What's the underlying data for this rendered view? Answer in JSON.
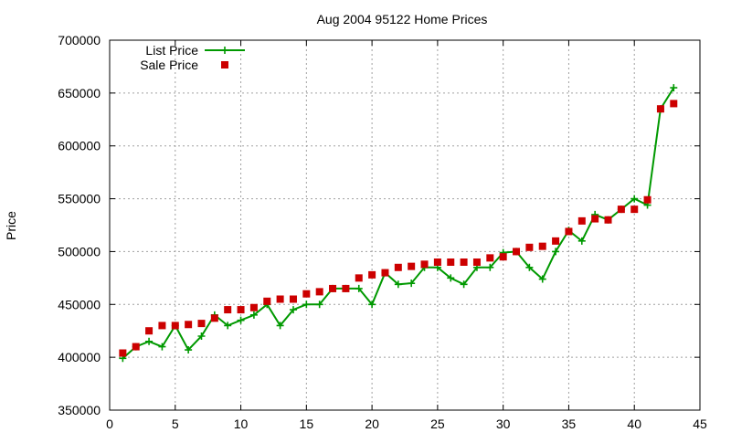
{
  "chart_data": {
    "type": "line",
    "title": "Aug 2004 95122 Home Prices",
    "xlabel": "",
    "ylabel": "Price",
    "xlim": [
      0,
      45
    ],
    "ylim": [
      350000,
      700000
    ],
    "xticks": [
      0,
      5,
      10,
      15,
      20,
      25,
      30,
      35,
      40,
      45
    ],
    "yticks": [
      350000,
      400000,
      450000,
      500000,
      550000,
      600000,
      650000,
      700000
    ],
    "grid": true,
    "legend_position": "top-left",
    "series": [
      {
        "name": "List Price",
        "style": "line-plus",
        "color": "#009900",
        "x": [
          1,
          2,
          3,
          4,
          5,
          6,
          7,
          8,
          9,
          10,
          11,
          12,
          13,
          14,
          15,
          16,
          17,
          18,
          19,
          20,
          21,
          22,
          23,
          24,
          25,
          26,
          27,
          28,
          29,
          30,
          31,
          32,
          33,
          34,
          35,
          36,
          37,
          38,
          39,
          40,
          41,
          42,
          43
        ],
        "y": [
          399000,
          410000,
          415000,
          410000,
          430000,
          407000,
          420000,
          440000,
          430000,
          435000,
          440000,
          450000,
          430000,
          445000,
          450000,
          450000,
          465000,
          465000,
          465000,
          450000,
          480000,
          469000,
          470000,
          485000,
          485000,
          475000,
          469000,
          485000,
          485000,
          499000,
          500000,
          485000,
          474000,
          500000,
          520000,
          510000,
          535000,
          530000,
          540000,
          550000,
          544000,
          635000,
          655000
        ]
      },
      {
        "name": "Sale Price",
        "style": "points-square",
        "color": "#cc0000",
        "x": [
          1,
          2,
          3,
          4,
          5,
          6,
          7,
          8,
          9,
          10,
          11,
          12,
          13,
          14,
          15,
          16,
          17,
          18,
          19,
          20,
          21,
          22,
          23,
          24,
          25,
          26,
          27,
          28,
          29,
          30,
          31,
          32,
          33,
          34,
          35,
          36,
          37,
          38,
          39,
          40,
          41,
          42,
          43
        ],
        "y": [
          404000,
          410000,
          425000,
          430000,
          430000,
          431000,
          432000,
          437000,
          445000,
          445000,
          447000,
          453000,
          455000,
          455000,
          460000,
          462000,
          465000,
          465000,
          475000,
          478000,
          480000,
          485000,
          486000,
          488000,
          490000,
          490000,
          490000,
          490000,
          494000,
          495000,
          500000,
          504000,
          505000,
          510000,
          519000,
          529000,
          531000,
          530000,
          540000,
          540000,
          549000,
          635000,
          640000
        ]
      }
    ]
  }
}
